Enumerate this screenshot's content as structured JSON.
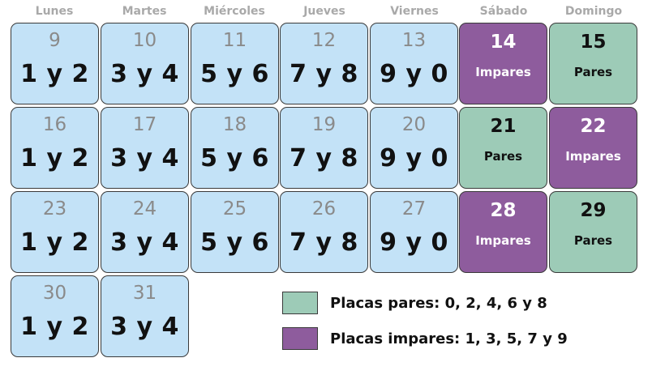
{
  "colors": {
    "weekday": "#c3e2f7",
    "odd": "#8e5c9d",
    "even": "#9dcbb7"
  },
  "headers": [
    "Lunes",
    "Martes",
    "Miércoles",
    "Jueves",
    "Viernes",
    "Sábado",
    "Domingo"
  ],
  "weeks": [
    [
      {
        "day": "9",
        "text": "1 y 2",
        "type": "weekday"
      },
      {
        "day": "10",
        "text": "3 y 4",
        "type": "weekday"
      },
      {
        "day": "11",
        "text": "5 y 6",
        "type": "weekday"
      },
      {
        "day": "12",
        "text": "7 y 8",
        "type": "weekday"
      },
      {
        "day": "13",
        "text": "9 y 0",
        "type": "weekday"
      },
      {
        "day": "14",
        "text": "Impares",
        "type": "odd"
      },
      {
        "day": "15",
        "text": "Pares",
        "type": "even"
      }
    ],
    [
      {
        "day": "16",
        "text": "1 y 2",
        "type": "weekday"
      },
      {
        "day": "17",
        "text": "3 y 4",
        "type": "weekday"
      },
      {
        "day": "18",
        "text": "5 y 6",
        "type": "weekday"
      },
      {
        "day": "19",
        "text": "7 y 8",
        "type": "weekday"
      },
      {
        "day": "20",
        "text": "9 y 0",
        "type": "weekday"
      },
      {
        "day": "21",
        "text": "Pares",
        "type": "even"
      },
      {
        "day": "22",
        "text": "Impares",
        "type": "odd"
      }
    ],
    [
      {
        "day": "23",
        "text": "1 y 2",
        "type": "weekday"
      },
      {
        "day": "24",
        "text": "3 y 4",
        "type": "weekday"
      },
      {
        "day": "25",
        "text": "5 y 6",
        "type": "weekday"
      },
      {
        "day": "26",
        "text": "7 y 8",
        "type": "weekday"
      },
      {
        "day": "27",
        "text": "9 y 0",
        "type": "weekday"
      },
      {
        "day": "28",
        "text": "Impares",
        "type": "odd"
      },
      {
        "day": "29",
        "text": "Pares",
        "type": "even"
      }
    ],
    [
      {
        "day": "30",
        "text": "1 y 2",
        "type": "weekday"
      },
      {
        "day": "31",
        "text": "3 y 4",
        "type": "weekday"
      }
    ]
  ],
  "legend": {
    "even": "Placas pares: 0, 2, 4, 6 y 8",
    "odd": "Placas impares: 1, 3, 5, 7 y 9"
  }
}
